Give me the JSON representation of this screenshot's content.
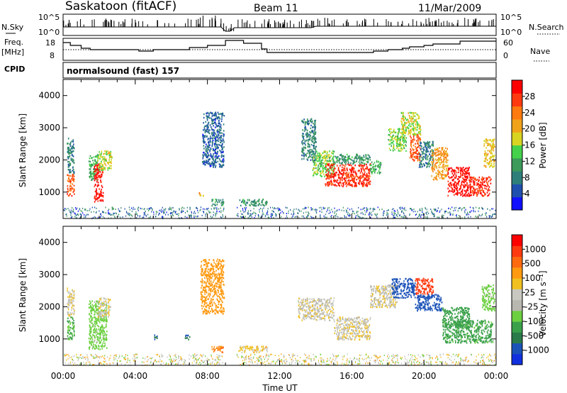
{
  "header": {
    "station": "Saskatoon (fitACF)",
    "beam": "Beam 11",
    "date": "11/Mar/2009"
  },
  "panels": {
    "nsky": {
      "label": "N.Sky",
      "ticks": [
        "10^5",
        "10^0"
      ]
    },
    "nsearch": {
      "label": "N.Search",
      "ticks": [
        "10^5",
        "10^0"
      ]
    },
    "freq": {
      "label_line1": "Freq.",
      "label_line2": "[MHz]",
      "ticks": [
        "18",
        "8"
      ]
    },
    "nave": {
      "label": "Nave",
      "ticks": [
        "60",
        "0"
      ]
    },
    "cpid": {
      "label": "CPID",
      "value": "normalsound (fast) 157"
    }
  },
  "colorbars": {
    "power": {
      "label": "Power [dB]",
      "ticks": [
        "4",
        "8",
        "12",
        "16",
        "20",
        "24",
        "28"
      ],
      "colors": [
        "#1010ff",
        "#1f4fae",
        "#2e7f7a",
        "#3c9a5a",
        "#44d24a",
        "#d8d422",
        "#f0a21a",
        "#ff7a10",
        "#ff3a10",
        "#ff0000"
      ]
    },
    "velocity": {
      "label": "Velocity [m s⁻¹]",
      "ticks": [
        "1000",
        "500",
        "100",
        "25",
        "-25",
        "-100",
        "-500",
        "-1000"
      ],
      "colors": [
        "#1030e0",
        "#1a52b8",
        "#2a7a4a",
        "#3aa04a",
        "#6cd040",
        "#b8b8b0",
        "#c8c8c0",
        "#f0c020",
        "#ff9a10",
        "#ff6a10",
        "#ff3a10",
        "#ff0000"
      ]
    }
  },
  "chart_data": [
    {
      "type": "heatmap",
      "name": "power",
      "ylabel": "Slant Range [km]",
      "yticks": [
        "1000",
        "2000",
        "3000",
        "4000"
      ],
      "ylim": [
        180,
        4500
      ],
      "xlim": [
        0,
        24
      ],
      "xticks": [
        "00:00",
        "04:00",
        "08:00",
        "12:00",
        "16:00",
        "20:00",
        "00:00"
      ],
      "cells": [
        {
          "t0": 0.2,
          "t1": 0.6,
          "r0": 900,
          "r1": 1600,
          "v": 24
        },
        {
          "t0": 0.2,
          "t1": 0.6,
          "r0": 1600,
          "r1": 2700,
          "v": 8
        },
        {
          "t0": 1.4,
          "t1": 1.9,
          "r0": 1400,
          "r1": 2200,
          "v": 12
        },
        {
          "t0": 1.7,
          "t1": 2.2,
          "r0": 700,
          "r1": 1900,
          "v": 28
        },
        {
          "t0": 1.9,
          "t1": 2.7,
          "r0": 1700,
          "r1": 2300,
          "v": 16
        },
        {
          "t0": 7.5,
          "t1": 7.8,
          "r0": 900,
          "r1": 1000,
          "v": 20
        },
        {
          "t0": 7.7,
          "t1": 8.9,
          "r0": 1800,
          "r1": 3500,
          "v": 6
        },
        {
          "t0": 8.2,
          "t1": 8.9,
          "r0": 600,
          "r1": 800,
          "v": 10
        },
        {
          "t0": 9.7,
          "t1": 11.3,
          "r0": 600,
          "r1": 800,
          "v": 10
        },
        {
          "t0": 13.2,
          "t1": 14.0,
          "r0": 2000,
          "r1": 3300,
          "v": 8
        },
        {
          "t0": 13.8,
          "t1": 15.0,
          "r0": 1500,
          "r1": 2300,
          "v": 14
        },
        {
          "t0": 14.5,
          "t1": 17.0,
          "r0": 1200,
          "r1": 1900,
          "v": 26
        },
        {
          "t0": 15.0,
          "t1": 17.0,
          "r0": 1900,
          "r1": 2200,
          "v": 10
        },
        {
          "t0": 17.0,
          "t1": 17.6,
          "r0": 1600,
          "r1": 2000,
          "v": 12
        },
        {
          "t0": 18.0,
          "t1": 19.0,
          "r0": 2300,
          "r1": 3000,
          "v": 14
        },
        {
          "t0": 18.7,
          "t1": 19.8,
          "r0": 2800,
          "r1": 3500,
          "v": 16
        },
        {
          "t0": 19.2,
          "t1": 19.8,
          "r0": 2000,
          "r1": 2800,
          "v": 24
        },
        {
          "t0": 19.7,
          "t1": 20.5,
          "r0": 1800,
          "r1": 2600,
          "v": 8
        },
        {
          "t0": 20.4,
          "t1": 21.3,
          "r0": 1400,
          "r1": 2400,
          "v": 20
        },
        {
          "t0": 21.3,
          "t1": 22.5,
          "r0": 900,
          "r1": 1800,
          "v": 28
        },
        {
          "t0": 22.5,
          "t1": 23.7,
          "r0": 900,
          "r1": 1500,
          "v": 26
        },
        {
          "t0": 23.3,
          "t1": 23.9,
          "r0": 1800,
          "r1": 2700,
          "v": 18
        }
      ]
    },
    {
      "type": "heatmap",
      "name": "velocity",
      "ylabel": "Slant Range [km]",
      "xlabel": "Time UT",
      "yticks": [
        "1000",
        "2000",
        "3000",
        "4000"
      ],
      "ylim": [
        180,
        4500
      ],
      "xlim": [
        0,
        24
      ],
      "xticks": [
        "00:00",
        "04:00",
        "08:00",
        "12:00",
        "16:00",
        "20:00",
        "00:00"
      ],
      "cells": [
        {
          "t0": 0.2,
          "t1": 0.6,
          "r0": 1000,
          "r1": 1700,
          "v": 300
        },
        {
          "t0": 0.2,
          "t1": 0.6,
          "r0": 1700,
          "r1": 2600,
          "v": 0
        },
        {
          "t0": 1.4,
          "t1": 2.4,
          "r0": 700,
          "r1": 2200,
          "v": 150
        },
        {
          "t0": 1.9,
          "t1": 2.6,
          "r0": 1700,
          "r1": 2300,
          "v": 0
        },
        {
          "t0": 5.0,
          "t1": 5.2,
          "r0": 1000,
          "r1": 1150,
          "v": 700
        },
        {
          "t0": 6.7,
          "t1": 7.0,
          "r0": 1000,
          "r1": 1150,
          "v": 700
        },
        {
          "t0": 7.6,
          "t1": 8.9,
          "r0": 1800,
          "r1": 3500,
          "v": -200
        },
        {
          "t0": 8.2,
          "t1": 8.9,
          "r0": 600,
          "r1": 800,
          "v": -300
        },
        {
          "t0": 9.7,
          "t1": 11.3,
          "r0": 600,
          "r1": 800,
          "v": -50
        },
        {
          "t0": 13.0,
          "t1": 15.0,
          "r0": 1600,
          "r1": 2300,
          "v": 0
        },
        {
          "t0": 15.0,
          "t1": 17.0,
          "r0": 1000,
          "r1": 1700,
          "v": 0
        },
        {
          "t0": 17.0,
          "t1": 18.5,
          "r0": 2000,
          "r1": 2700,
          "v": 0
        },
        {
          "t0": 18.2,
          "t1": 19.5,
          "r0": 2300,
          "r1": 2900,
          "v": 900
        },
        {
          "t0": 19.5,
          "t1": 20.5,
          "r0": 2400,
          "r1": 2900,
          "v": -600
        },
        {
          "t0": 19.5,
          "t1": 21.0,
          "r0": 1900,
          "r1": 2400,
          "v": 800
        },
        {
          "t0": 21.0,
          "t1": 22.5,
          "r0": 1400,
          "r1": 2000,
          "v": 400
        },
        {
          "t0": 21.0,
          "t1": 23.8,
          "r0": 900,
          "r1": 1600,
          "v": 350
        },
        {
          "t0": 23.2,
          "t1": 23.9,
          "r0": 1900,
          "r1": 2700,
          "v": 150
        }
      ]
    }
  ]
}
